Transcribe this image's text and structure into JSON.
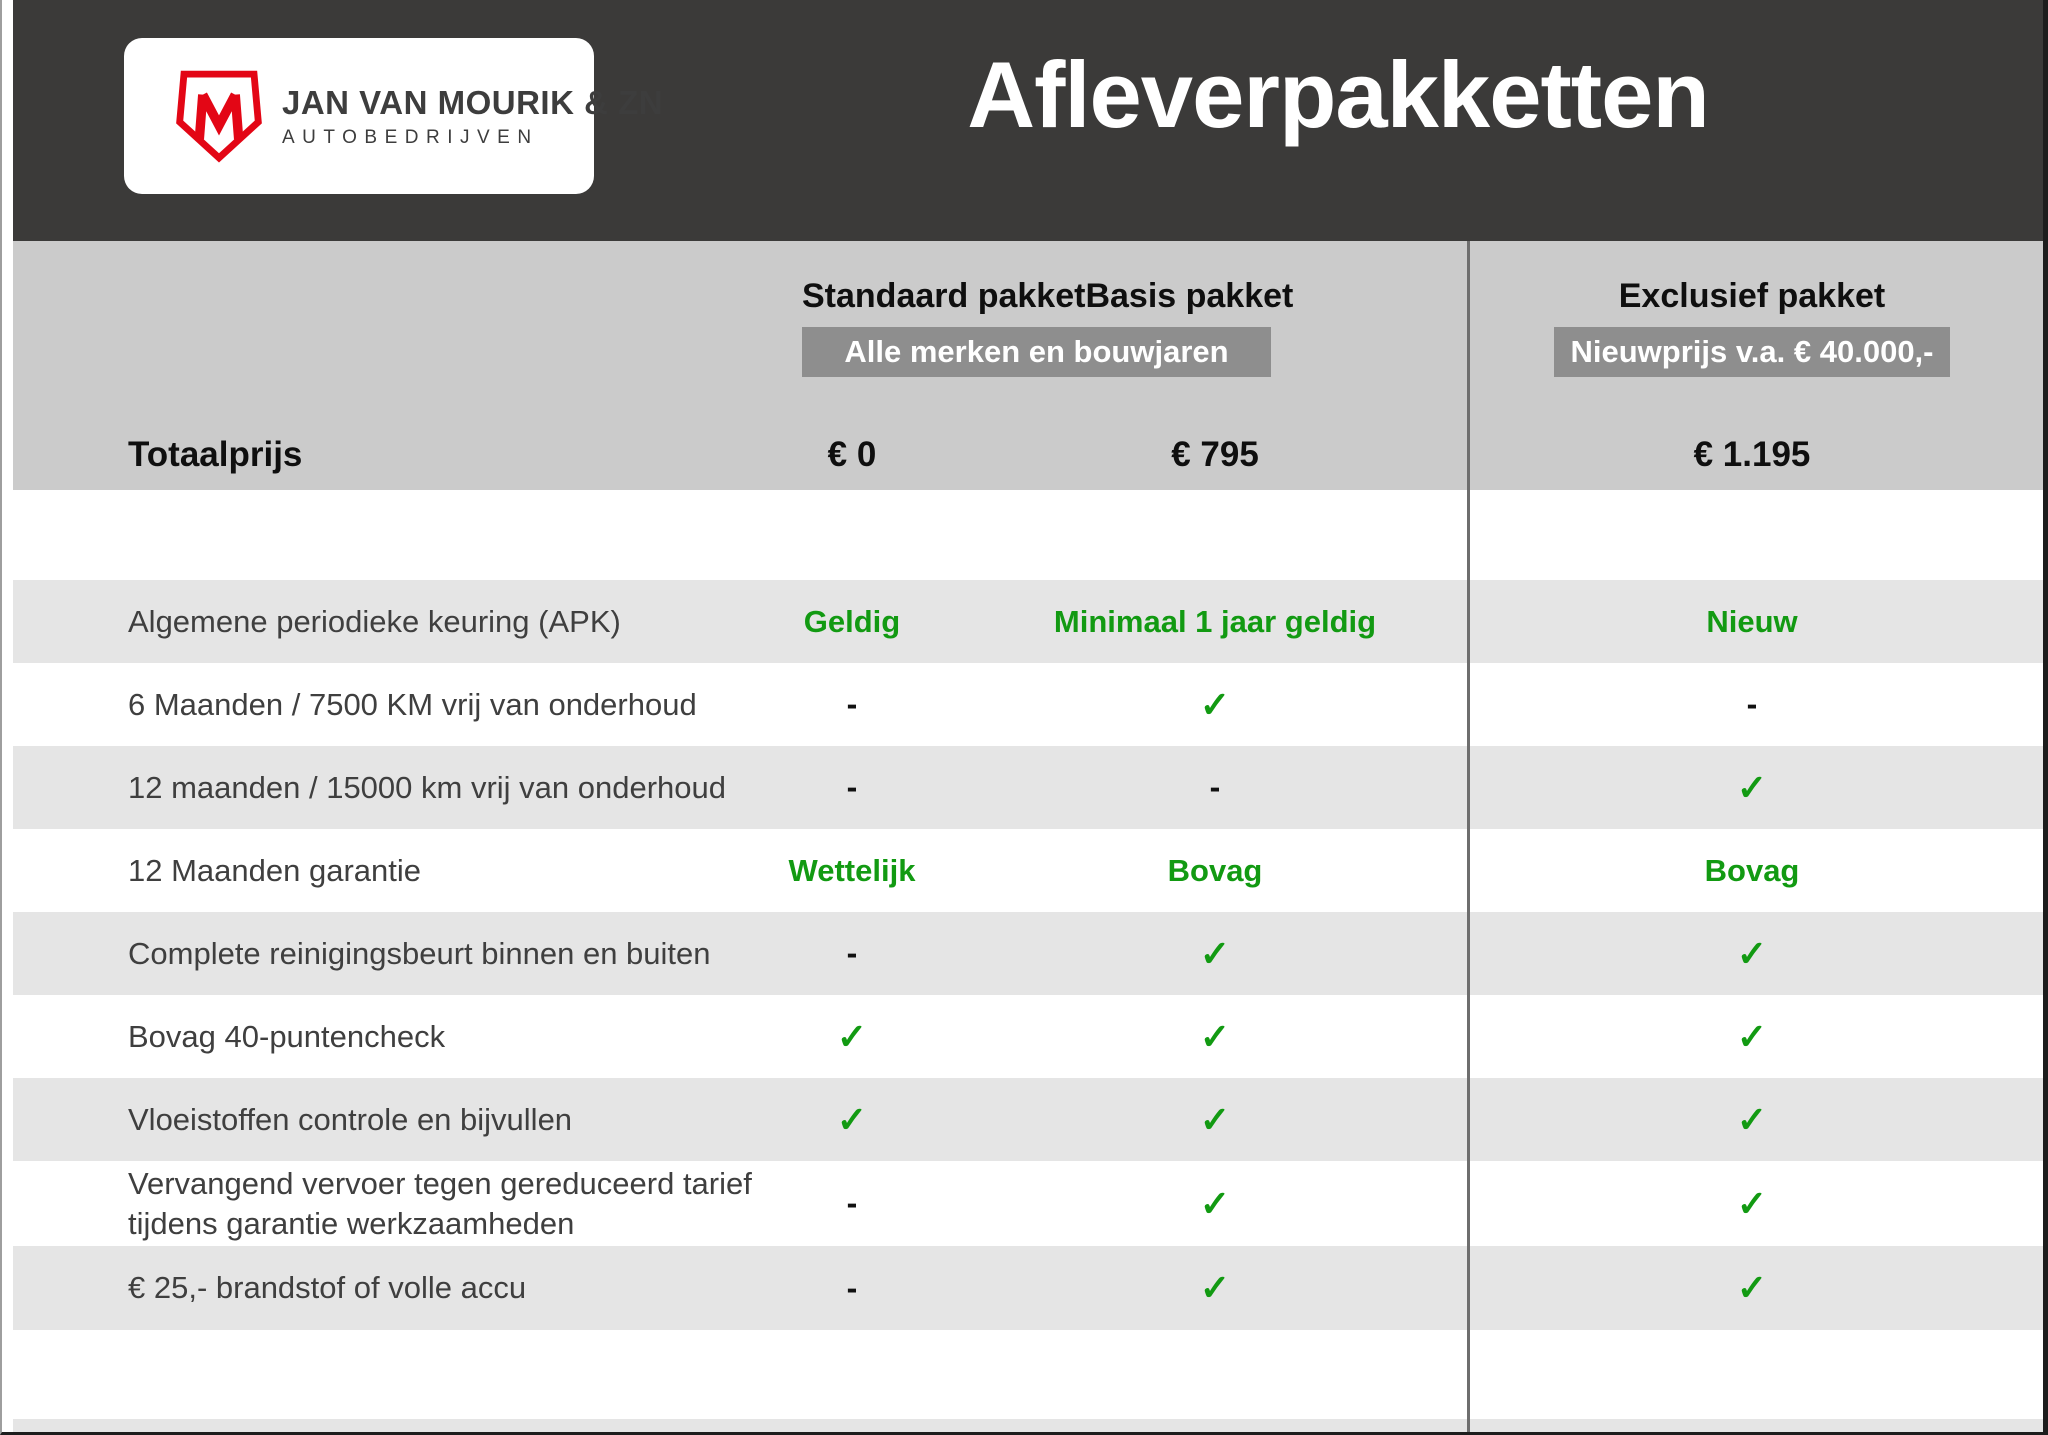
{
  "brand": {
    "name_line1": "JAN VAN MOURIK & ZN",
    "name_line2": "AUTOBEDRIJVEN",
    "monogram": "M"
  },
  "header": {
    "title": "Afleverpakketten"
  },
  "columns": {
    "standaard_label": "Standaard pakket",
    "basis_label": "Basis pakket",
    "exclusief_label": "Exclusief pakket",
    "badge_left": "Alle merken en bouwjaren",
    "badge_right": "Nieuwprijs v.a. € 40.000,-"
  },
  "totals": {
    "label": "Totaalprijs",
    "standaard": "€ 0",
    "basis": "€ 795",
    "exclusief": "€ 1.195"
  },
  "rows": [
    {
      "label": "Algemene periodieke keuring (APK)",
      "cells": [
        {
          "kind": "text",
          "value": "Geldig"
        },
        {
          "kind": "text",
          "value": "Minimaal 1 jaar geldig"
        },
        {
          "kind": "text",
          "value": "Nieuw"
        }
      ]
    },
    {
      "label": "6 Maanden / 7500 KM vrij van onderhoud",
      "cells": [
        {
          "kind": "dash"
        },
        {
          "kind": "check"
        },
        {
          "kind": "dash"
        }
      ]
    },
    {
      "label": "12 maanden / 15000 km vrij van onderhoud",
      "cells": [
        {
          "kind": "dash"
        },
        {
          "kind": "dash"
        },
        {
          "kind": "check"
        }
      ]
    },
    {
      "label": "12 Maanden  garantie",
      "cells": [
        {
          "kind": "text",
          "value": "Wettelijk"
        },
        {
          "kind": "text",
          "value": "Bovag"
        },
        {
          "kind": "text",
          "value": "Bovag"
        }
      ]
    },
    {
      "label": "Complete reinigingsbeurt binnen en buiten",
      "cells": [
        {
          "kind": "dash"
        },
        {
          "kind": "check"
        },
        {
          "kind": "check"
        }
      ]
    },
    {
      "label": "Bovag 40-puntencheck",
      "cells": [
        {
          "kind": "check"
        },
        {
          "kind": "check"
        },
        {
          "kind": "check"
        }
      ]
    },
    {
      "label": "Vloeistoffen controle en bijvullen",
      "cells": [
        {
          "kind": "check"
        },
        {
          "kind": "check"
        },
        {
          "kind": "check"
        }
      ]
    },
    {
      "label": "Vervangend vervoer tegen gereduceerd tarief",
      "label2": "tijdens garantie werkzaamheden",
      "cells": [
        {
          "kind": "dash"
        },
        {
          "kind": "check"
        },
        {
          "kind": "check"
        }
      ]
    },
    {
      "label": "€ 25,- brandstof of  volle accu",
      "cells": [
        {
          "kind": "dash"
        },
        {
          "kind": "check"
        },
        {
          "kind": "check"
        }
      ]
    }
  ],
  "marks": {
    "check": "✓",
    "dash": "-"
  },
  "colors": {
    "header_bg": "#3b3a39",
    "band_bg": "#cbcbcb",
    "badge_bg": "#8e8e8e",
    "stripe_bg": "#e5e5e5",
    "green": "#129a12",
    "brand_red": "#e30615",
    "divider": "#6e6e6e"
  }
}
